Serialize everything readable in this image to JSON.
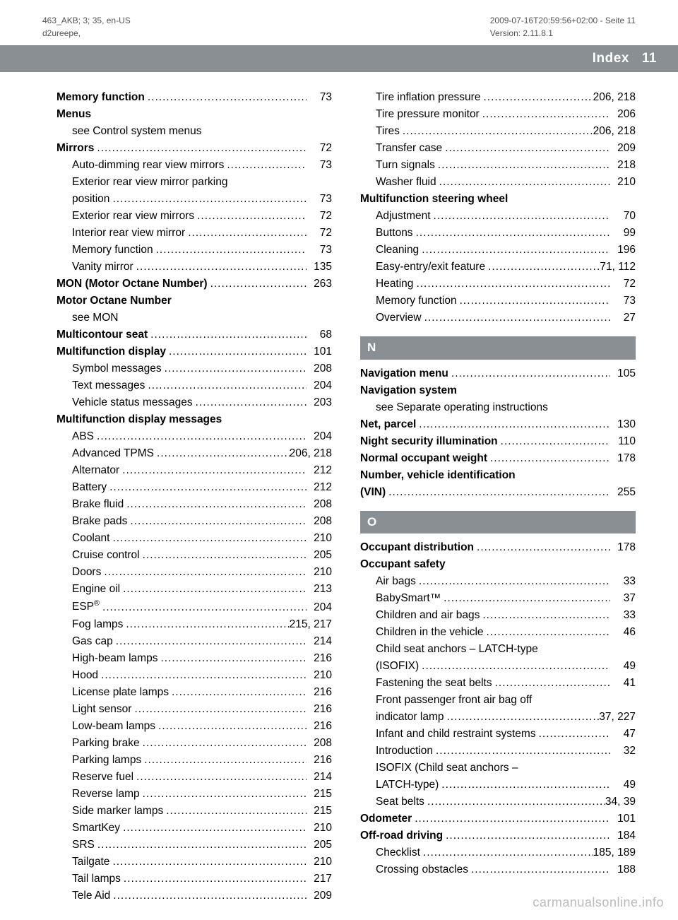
{
  "header": {
    "left_line1": "463_AKB; 3; 35, en-US",
    "left_line2": "d2ureepe,",
    "right_line1": "2009-07-16T20:59:56+02:00 - Seite 11",
    "right_line2": "Version: 2.11.8.1"
  },
  "index_bar": {
    "label": "Index",
    "page_num": "11"
  },
  "watermark": "carmanualsonline.info",
  "col1": [
    {
      "label": "Memory function",
      "bold": true,
      "page": "73"
    },
    {
      "label": "Menus",
      "bold": true,
      "no_page": true
    },
    {
      "label": "see Control system menus",
      "sub": true,
      "no_page": true
    },
    {
      "label": "Mirrors",
      "bold": true,
      "page": "72"
    },
    {
      "label": "Auto-dimming rear view mirrors",
      "sub": true,
      "page": "73"
    },
    {
      "label": "Exterior rear view mirror parking",
      "sub": true,
      "no_page": true
    },
    {
      "label": "position",
      "sub": true,
      "page": "73"
    },
    {
      "label": "Exterior rear view mirrors",
      "sub": true,
      "page": "72"
    },
    {
      "label": "Interior rear view mirror",
      "sub": true,
      "page": "72"
    },
    {
      "label": "Memory function",
      "sub": true,
      "page": "73"
    },
    {
      "label": "Vanity mirror",
      "sub": true,
      "page": "135"
    },
    {
      "label": "MON (Motor Octane Number)",
      "bold": true,
      "page": "263"
    },
    {
      "label": "Motor Octane Number",
      "bold": true,
      "no_page": true
    },
    {
      "label": "see MON",
      "sub": true,
      "no_page": true
    },
    {
      "label": "Multicontour seat",
      "bold": true,
      "page": "68"
    },
    {
      "label": "Multifunction display",
      "bold": true,
      "page": "101"
    },
    {
      "label": "Symbol messages",
      "sub": true,
      "page": "208"
    },
    {
      "label": "Text messages",
      "sub": true,
      "page": "204"
    },
    {
      "label": "Vehicle status messages",
      "sub": true,
      "page": "203"
    },
    {
      "label": "Multifunction display messages",
      "bold": true,
      "no_page": true
    },
    {
      "label": "ABS",
      "sub": true,
      "page": "204"
    },
    {
      "label": "Advanced TPMS",
      "sub": true,
      "page": "206, 218"
    },
    {
      "label": "Alternator",
      "sub": true,
      "page": "212"
    },
    {
      "label": "Battery",
      "sub": true,
      "page": "212"
    },
    {
      "label": "Brake fluid",
      "sub": true,
      "page": "208"
    },
    {
      "label": "Brake pads",
      "sub": true,
      "page": "208"
    },
    {
      "label": "Coolant",
      "sub": true,
      "page": "210"
    },
    {
      "label": "Cruise control",
      "sub": true,
      "page": "205"
    },
    {
      "label": "Doors",
      "sub": true,
      "page": "210"
    },
    {
      "label": "Engine oil",
      "sub": true,
      "page": "213"
    },
    {
      "label": "ESP®",
      "sub": true,
      "page": "204",
      "sup": true
    },
    {
      "label": "Fog lamps",
      "sub": true,
      "page": "215, 217"
    },
    {
      "label": "Gas cap",
      "sub": true,
      "page": "214"
    },
    {
      "label": "High-beam lamps",
      "sub": true,
      "page": "216"
    },
    {
      "label": "Hood",
      "sub": true,
      "page": "210"
    },
    {
      "label": "License plate lamps",
      "sub": true,
      "page": "216"
    },
    {
      "label": "Light sensor",
      "sub": true,
      "page": "216"
    },
    {
      "label": "Low-beam lamps",
      "sub": true,
      "page": "216"
    },
    {
      "label": "Parking brake",
      "sub": true,
      "page": "208"
    },
    {
      "label": "Parking lamps",
      "sub": true,
      "page": "216"
    },
    {
      "label": "Reserve fuel",
      "sub": true,
      "page": "214"
    },
    {
      "label": "Reverse lamp",
      "sub": true,
      "page": "215"
    },
    {
      "label": "Side marker lamps",
      "sub": true,
      "page": "215"
    },
    {
      "label": "SmartKey",
      "sub": true,
      "page": "210"
    },
    {
      "label": "SRS",
      "sub": true,
      "page": "205"
    },
    {
      "label": "Tailgate",
      "sub": true,
      "page": "210"
    },
    {
      "label": "Tail lamps",
      "sub": true,
      "page": "217"
    },
    {
      "label": "Tele Aid",
      "sub": true,
      "page": "209"
    }
  ],
  "col2_top": [
    {
      "label": "Tire inflation pressure",
      "sub": true,
      "page": "206, 218"
    },
    {
      "label": "Tire pressure monitor",
      "sub": true,
      "page": "206"
    },
    {
      "label": "Tires",
      "sub": true,
      "page": "206, 218"
    },
    {
      "label": "Transfer case",
      "sub": true,
      "page": "209"
    },
    {
      "label": "Turn signals",
      "sub": true,
      "page": "218"
    },
    {
      "label": "Washer fluid",
      "sub": true,
      "page": "210"
    },
    {
      "label": "Multifunction steering wheel",
      "bold": true,
      "no_page": true
    },
    {
      "label": "Adjustment",
      "sub": true,
      "page": "70"
    },
    {
      "label": "Buttons",
      "sub": true,
      "page": "99"
    },
    {
      "label": "Cleaning",
      "sub": true,
      "page": "196"
    },
    {
      "label": "Easy-entry/exit feature",
      "sub": true,
      "page": "71, 112"
    },
    {
      "label": "Heating",
      "sub": true,
      "page": "72"
    },
    {
      "label": "Memory function",
      "sub": true,
      "page": "73"
    },
    {
      "label": "Overview",
      "sub": true,
      "page": "27"
    }
  ],
  "section_n": {
    "letter": "N",
    "entries": [
      {
        "label": "Navigation menu",
        "bold": true,
        "page": "105"
      },
      {
        "label": "Navigation system",
        "bold": true,
        "no_page": true
      },
      {
        "label": "see Separate operating instructions",
        "sub": true,
        "no_page": true
      },
      {
        "label": "Net, parcel",
        "bold": true,
        "page": "130"
      },
      {
        "label": "Night security illumination",
        "bold": true,
        "page": "110"
      },
      {
        "label": "Normal occupant weight",
        "bold": true,
        "page": "178"
      },
      {
        "label": "Number, vehicle identification",
        "bold": true,
        "no_page": true
      },
      {
        "label": "(VIN)",
        "bold": true,
        "page": "255"
      }
    ]
  },
  "section_o": {
    "letter": "O",
    "entries": [
      {
        "label": "Occupant distribution",
        "bold": true,
        "page": "178"
      },
      {
        "label": "Occupant safety",
        "bold": true,
        "no_page": true
      },
      {
        "label": "Air bags",
        "sub": true,
        "page": "33"
      },
      {
        "label": "BabySmart™",
        "sub": true,
        "page": "37"
      },
      {
        "label": "Children and air bags",
        "sub": true,
        "page": "33"
      },
      {
        "label": "Children in the vehicle",
        "sub": true,
        "page": "46"
      },
      {
        "label": "Child seat anchors – LATCH-type",
        "sub": true,
        "no_page": true
      },
      {
        "label": "(ISOFIX)",
        "sub": true,
        "page": "49"
      },
      {
        "label": "Fastening the seat belts",
        "sub": true,
        "page": "41"
      },
      {
        "label": "Front passenger front air bag off",
        "sub": true,
        "no_page": true
      },
      {
        "label": "indicator lamp",
        "sub": true,
        "page": "37, 227"
      },
      {
        "label": "Infant and child restraint systems",
        "sub": true,
        "page": "47"
      },
      {
        "label": "Introduction",
        "sub": true,
        "page": "32"
      },
      {
        "label": "ISOFIX (Child seat anchors –",
        "sub": true,
        "no_page": true
      },
      {
        "label": "LATCH-type)",
        "sub": true,
        "page": "49"
      },
      {
        "label": "Seat belts",
        "sub": true,
        "page": "34, 39"
      },
      {
        "label": "Odometer",
        "bold": true,
        "page": "101"
      },
      {
        "label": "Off-road driving",
        "bold": true,
        "page": "184"
      },
      {
        "label": "Checklist",
        "sub": true,
        "page": "185, 189"
      },
      {
        "label": "Crossing obstacles",
        "sub": true,
        "page": "188"
      }
    ]
  }
}
